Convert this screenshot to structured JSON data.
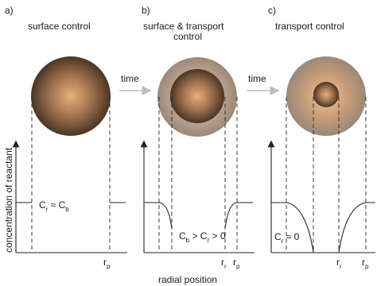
{
  "panels": [
    {
      "letter": "a)",
      "title_line1": "surface control",
      "title_line2": ""
    },
    {
      "letter": "b)",
      "title_line1": "surface & transport",
      "title_line2": "control"
    },
    {
      "letter": "c)",
      "title_line1": "transport control",
      "title_line2": ""
    }
  ],
  "arrows": [
    {
      "label": "time"
    },
    {
      "label": "time"
    }
  ],
  "ylabel": "concentration of reactant",
  "xlabel": "radial position",
  "annotations": {
    "a_main": "C",
    "a_sub1": "r",
    "a_mid": " ≈ C",
    "a_sub2": "b",
    "b_c1": "C",
    "b_s1": "b",
    "b_gt1": " > C",
    "b_s2": "r",
    "b_gt2": " > 0",
    "c_main": "C",
    "c_sub": "r",
    "c_rest": " ≈ 0"
  },
  "ticks": {
    "r": "r",
    "r_sub": "r",
    "p_sub": "p"
  },
  "colors": {
    "particle_light": "#e0a974",
    "particle_dark": "#4a3524",
    "shell": "#a89683",
    "arrow": "#bdbdbd"
  }
}
